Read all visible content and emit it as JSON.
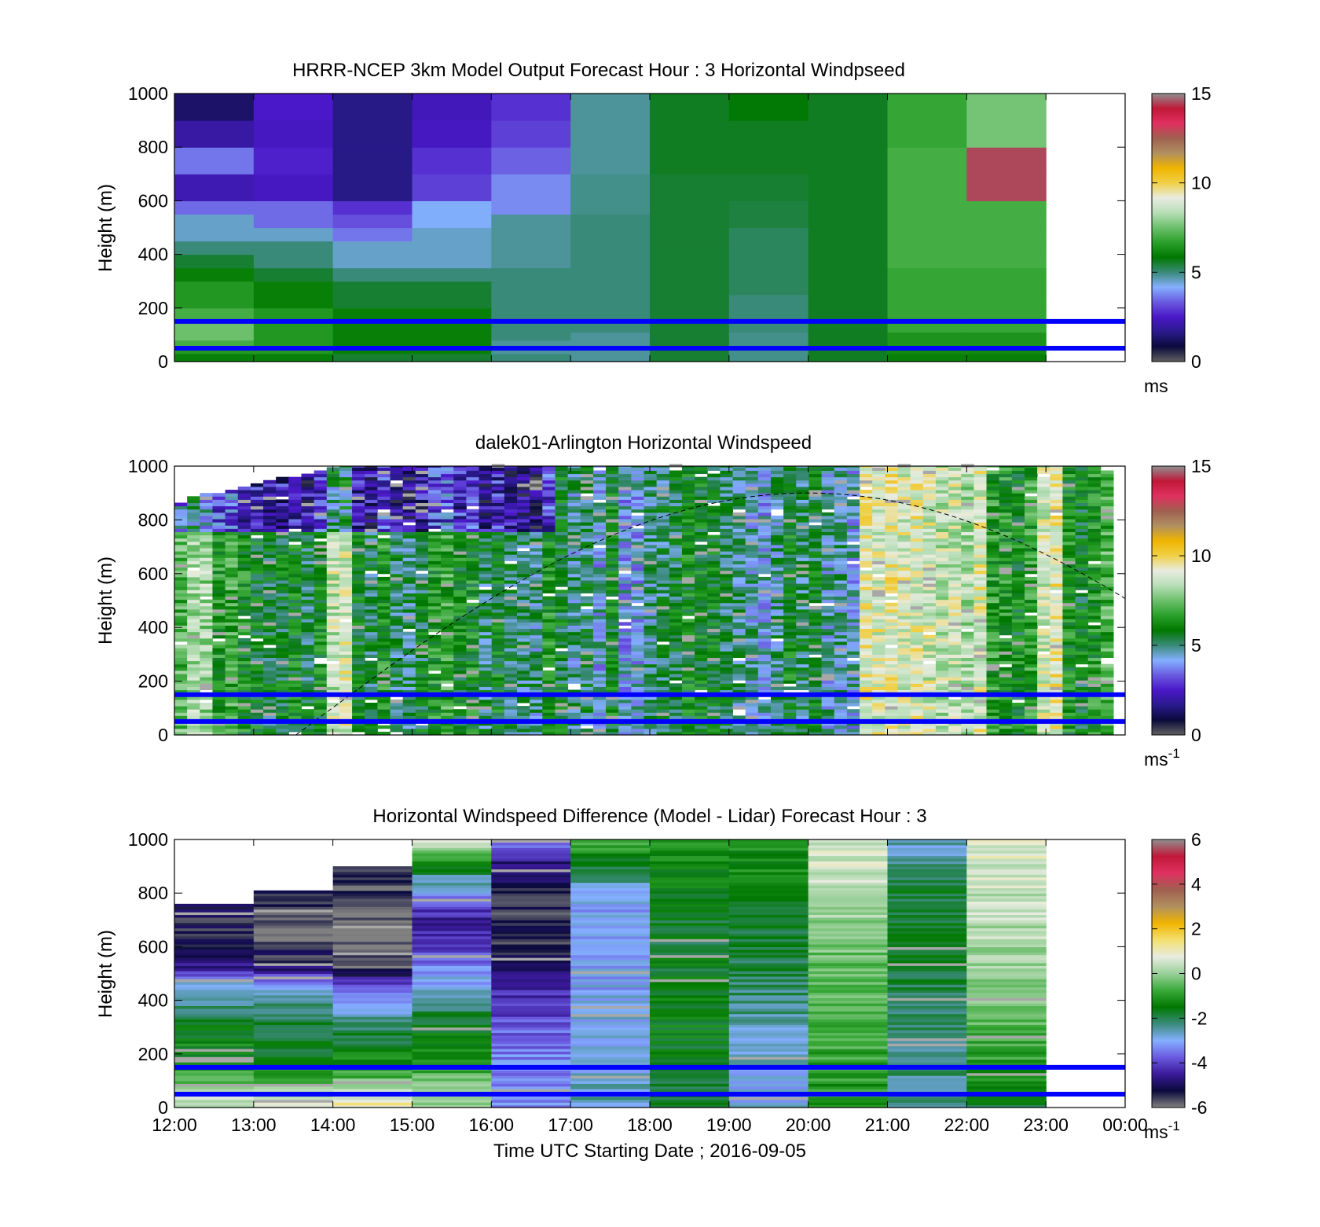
{
  "figure": {
    "xlabel": "Time UTC  Starting Date ; 2016-09-05",
    "x_tick_labels": [
      "12:00",
      "13:00",
      "14:00",
      "15:00",
      "16:00",
      "17:00",
      "18:00",
      "19:00",
      "20:00",
      "21:00",
      "22:00",
      "23:00",
      "00:00"
    ],
    "y_tick_labels": [
      "0",
      "200",
      "400",
      "600",
      "800",
      "1000"
    ],
    "ylabel": "Height (m)",
    "reference_line_color": "#0000ff",
    "colors": {
      "speed_colormap": [
        "#606060",
        "#0a0a3c",
        "#2a1a8c",
        "#4a18c8",
        "#6a5ae0",
        "#84b0ff",
        "#3a8a7a",
        "#007800",
        "#2aa02a",
        "#6cc06c",
        "#b8deb8",
        "#e8ece0",
        "#f0d048",
        "#f0b400",
        "#b09060",
        "#a06050",
        "#e03060",
        "#c01838",
        "#909090"
      ],
      "diff_colormap": [
        "#808080",
        "#0a0a3c",
        "#3a1a9a",
        "#6a5ae0",
        "#84b0ff",
        "#3a8a7a",
        "#007800",
        "#3aaa3a",
        "#9ad09a",
        "#e8ece0",
        "#f4e070",
        "#f0b400",
        "#b09060",
        "#a06050",
        "#e03060",
        "#c01838",
        "#909090"
      ]
    }
  },
  "chart_data": [
    {
      "type": "heatmap",
      "title": "HRRR-NCEP 3km Model Output   Forecast Hour : 3 Horizontal Windpseed",
      "ylabel": "Height (m)",
      "xlim": [
        "12:00",
        "00:00"
      ],
      "ylim": [
        0,
        1000
      ],
      "colorbar": {
        "ticks": [
          "0",
          "5",
          "10",
          "15"
        ],
        "range": [
          0,
          15
        ],
        "unit": "ms",
        "unit_sup": ""
      },
      "x": [
        "12:00",
        "13:00",
        "14:00",
        "15:00",
        "16:00",
        "17:00",
        "18:00",
        "19:00",
        "20:00",
        "21:00",
        "22:00"
      ],
      "height_levels": [
        0,
        30,
        50,
        80,
        110,
        150,
        200,
        250,
        300,
        350,
        400,
        450,
        500,
        550,
        600,
        700,
        800,
        900,
        1000
      ],
      "values": [
        [
          6,
          6.5,
          7,
          7.5,
          7.5,
          7,
          6.5,
          6.5,
          6,
          5.5,
          5,
          4.5,
          4.5,
          3.5,
          2.2,
          3.6,
          2.0,
          1.3
        ],
        [
          6,
          6.5,
          6.5,
          6.5,
          6.5,
          6.5,
          6,
          6,
          5.5,
          5,
          5,
          4.5,
          3.5,
          3.5,
          2.4,
          2.6,
          2.4,
          2.5
        ],
        [
          5.5,
          6,
          6,
          6,
          6,
          6,
          5.5,
          5.5,
          5,
          4.5,
          4.5,
          3.6,
          3.2,
          2.8,
          1.6,
          1.6,
          1.6,
          1.6
        ],
        [
          5.5,
          6,
          6,
          6,
          6,
          6,
          5.5,
          5.5,
          5,
          4.5,
          4.5,
          4.5,
          4.2,
          4.2,
          3.0,
          2.8,
          2.4,
          2.3
        ],
        [
          5,
          4.8,
          4.8,
          5,
          5,
          5,
          5,
          5,
          5,
          4.8,
          4.8,
          4.8,
          4.8,
          3.8,
          3.8,
          3.4,
          3.0,
          2.8
        ],
        [
          4.8,
          4.8,
          4.8,
          4.8,
          5,
          5,
          5,
          5,
          5,
          5,
          5,
          5,
          5,
          4.9,
          4.9,
          4.8,
          4.8,
          4.8
        ],
        [
          5.5,
          5.5,
          5.5,
          5.5,
          5.5,
          5.5,
          5.5,
          5.5,
          5.5,
          5.5,
          5.5,
          5.5,
          5.5,
          5.5,
          5.5,
          5.6,
          5.6,
          5.6
        ],
        [
          4.9,
          4.9,
          4.9,
          4.9,
          5,
          5,
          5,
          5.2,
          5.2,
          5.2,
          5.2,
          5.2,
          5.4,
          5.4,
          5.5,
          5.6,
          5.6,
          5.8
        ],
        [
          5.6,
          5.6,
          5.6,
          5.6,
          5.6,
          5.6,
          5.6,
          5.6,
          5.6,
          5.6,
          5.6,
          5.6,
          5.6,
          5.6,
          5.6,
          5.6,
          5.6,
          5.6
        ],
        [
          6,
          6.2,
          6.4,
          6.4,
          6.8,
          6.8,
          6.8,
          6.8,
          6.8,
          7,
          7,
          7,
          7,
          7,
          7,
          7,
          6.8,
          6.8
        ],
        [
          6,
          6.2,
          6.4,
          6.4,
          6.8,
          6.8,
          6.8,
          6.8,
          6.8,
          7,
          7,
          7,
          7,
          7,
          14.5,
          14.5,
          7.6,
          7.6
        ]
      ],
      "reference_heights": [
        150,
        50
      ]
    },
    {
      "type": "heatmap",
      "title": "dalek01-Arlington  Horizontal Windspeed",
      "ylabel": "Height (m)",
      "xlim": [
        "12:00",
        "00:00"
      ],
      "ylim": [
        0,
        1000
      ],
      "colorbar": {
        "ticks": [
          "0",
          "5",
          "10",
          "15"
        ],
        "range": [
          0,
          15
        ],
        "unit": "ms",
        "unit_sup": "-1"
      },
      "column_base_values": [
        7.2,
        8.3,
        8.1,
        6.6,
        6.9,
        6.2,
        5.8,
        5.6,
        5.7,
        6.0,
        5.4,
        6.0,
        8.6,
        8.9,
        5.8,
        5.4,
        6.5,
        5.3,
        5.1,
        5.6,
        6.4,
        6.8,
        6.0,
        6.2,
        5.2,
        5.9,
        5.4,
        5.1,
        4.8,
        6.3,
        5.7,
        4.8,
        5.3,
        4.4,
        5.9,
        4.2,
        4.3,
        4.9,
        5.2,
        5.5,
        6.0,
        5.9,
        5.7,
        5.4,
        5.0,
        4.6,
        4.3,
        4.9,
        5.9,
        5.2,
        5.6,
        4.6,
        4.8,
        4.4,
        9.2,
        9.0,
        9.3,
        8.9,
        9.1,
        8.8,
        8.5,
        8.7,
        8.2,
        9.0,
        6.6,
        6.4,
        6.0,
        6.7,
        8.8,
        9.3,
        6.2,
        5.8,
        6.4,
        7.0
      ],
      "column_top_heights": [
        860,
        880,
        890,
        900,
        910,
        920,
        930,
        940,
        950,
        960,
        970,
        980,
        990,
        1000,
        1000,
        1000,
        1000,
        1000,
        1000,
        1000,
        1000,
        1000,
        1000,
        1000,
        1000,
        1000,
        1000,
        1000,
        1000,
        1000,
        1000,
        1000,
        1000,
        1000,
        1000,
        1000,
        1000,
        1000,
        1000,
        1000,
        1000,
        1000,
        1000,
        1000,
        1000,
        1000,
        1000,
        1000,
        1000,
        1000,
        1000,
        1000,
        1000,
        1000,
        1000,
        1000,
        1000,
        1000,
        1000,
        1000,
        1000,
        1000,
        1000,
        1000,
        1000,
        1000,
        1000,
        1000,
        1000,
        1000,
        1000,
        1000,
        1000,
        980
      ],
      "overlay_curve": {
        "x": [
          "13:32",
          "20:00",
          "00:00"
        ],
        "y": [
          0,
          900,
          500
        ],
        "style": "dashed"
      },
      "reference_heights": [
        150,
        50
      ]
    },
    {
      "type": "heatmap",
      "title": "Horizontal Windspeed Difference (Model - Lidar) Forecast Hour : 3",
      "ylabel": "Height (m)",
      "xlabel": "Time UTC  Starting Date ; 2016-09-05",
      "xlim": [
        "12:00",
        "00:00"
      ],
      "ylim": [
        0,
        1000
      ],
      "colorbar": {
        "ticks": [
          "-6",
          "-4",
          "-2",
          "0",
          "2",
          "4",
          "6"
        ],
        "range": [
          -6,
          6
        ],
        "unit": "ms",
        "unit_sup": "-1"
      },
      "x": [
        "12:00",
        "13:00",
        "14:00",
        "15:00",
        "16:00",
        "17:00",
        "18:00",
        "19:00",
        "20:00",
        "21:00",
        "22:00"
      ],
      "column_top_heights": [
        760,
        810,
        900,
        1000,
        1000,
        1000,
        1000,
        1000,
        1000,
        1000,
        1000
      ],
      "column_profiles": [
        [
          [
            0,
            0.6
          ],
          [
            150,
            -1.2
          ],
          [
            300,
            -1.6
          ],
          [
            450,
            -2.8
          ],
          [
            520,
            -4.6
          ],
          [
            600,
            -5.5
          ],
          [
            760,
            -5.2
          ]
        ],
        [
          [
            0,
            0.8
          ],
          [
            150,
            -1.4
          ],
          [
            300,
            -1.8
          ],
          [
            450,
            -2.8
          ],
          [
            530,
            -5.2
          ],
          [
            640,
            -5.8
          ],
          [
            810,
            -5.5
          ]
        ],
        [
          [
            0,
            1.2
          ],
          [
            150,
            -1.2
          ],
          [
            300,
            -2.2
          ],
          [
            440,
            -3.6
          ],
          [
            520,
            -5.8
          ],
          [
            700,
            -6.0
          ],
          [
            900,
            -5.2
          ]
        ],
        [
          [
            0,
            0.2
          ],
          [
            150,
            -0.8
          ],
          [
            300,
            -1.6
          ],
          [
            440,
            -2.8
          ],
          [
            560,
            -3.8
          ],
          [
            700,
            -4.6
          ],
          [
            850,
            -2.5
          ],
          [
            1000,
            0.8
          ]
        ],
        [
          [
            0,
            -3.2
          ],
          [
            200,
            -3.4
          ],
          [
            300,
            -3.8
          ],
          [
            400,
            -4.2
          ],
          [
            550,
            -5.2
          ],
          [
            700,
            -5.6
          ],
          [
            900,
            -4.8
          ],
          [
            1000,
            -3.0
          ]
        ],
        [
          [
            0,
            -2.6
          ],
          [
            200,
            -2.8
          ],
          [
            400,
            -3.0
          ],
          [
            600,
            -3.2
          ],
          [
            800,
            -3.0
          ],
          [
            950,
            -1.0
          ],
          [
            1000,
            -0.8
          ]
        ],
        [
          [
            0,
            -2.0
          ],
          [
            200,
            -1.6
          ],
          [
            400,
            -1.4
          ],
          [
            600,
            -1.8
          ],
          [
            800,
            -1.6
          ],
          [
            1000,
            -1.2
          ]
        ],
        [
          [
            0,
            -3.0
          ],
          [
            200,
            -2.8
          ],
          [
            400,
            -2.2
          ],
          [
            600,
            -1.8
          ],
          [
            800,
            -1.4
          ],
          [
            1000,
            -1.2
          ]
        ],
        [
          [
            0,
            -1.2
          ],
          [
            200,
            -0.8
          ],
          [
            400,
            -0.6
          ],
          [
            600,
            -0.3
          ],
          [
            800,
            0.4
          ],
          [
            1000,
            0.6
          ]
        ],
        [
          [
            0,
            -2.4
          ],
          [
            200,
            -2.2
          ],
          [
            400,
            -2.0
          ],
          [
            600,
            -1.8
          ],
          [
            800,
            -1.8
          ],
          [
            1000,
            -2.8
          ]
        ],
        [
          [
            0,
            -1.8
          ],
          [
            200,
            -0.8
          ],
          [
            400,
            -0.2
          ],
          [
            600,
            0.2
          ],
          [
            800,
            0.4
          ],
          [
            1000,
            0.8
          ]
        ]
      ],
      "reference_heights": [
        150,
        50
      ]
    }
  ]
}
